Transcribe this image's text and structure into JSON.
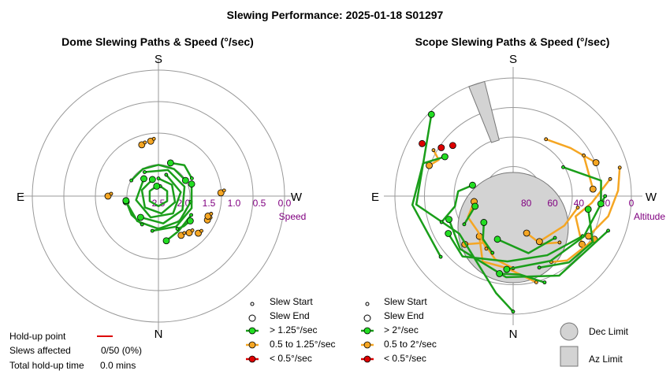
{
  "figure_title": "Slewing Performance: 2025-01-18 S01297",
  "colors": {
    "fast": "#1a9e1a",
    "fast_fill": "#22dd22",
    "medium": "#f5a623",
    "slow": "#dd0000",
    "grid": "#999999",
    "axis_label": "#800080",
    "limit_fill": "#d3d3d3",
    "limit_stroke": "#777777"
  },
  "holdup": {
    "point_label": "Hold-up point",
    "slews_label": "Slews affected",
    "slews_value": "0/50 (0%)",
    "time_label": "Total hold-up time",
    "time_value": "0.0 mins"
  },
  "chart_data": [
    {
      "type": "polar-scatter",
      "title": "Dome Slewing Paths & Speed (°/sec)",
      "compass": {
        "top": "S",
        "bottom": "N",
        "left": "E",
        "right": "W"
      },
      "radial_axis_label": "Speed",
      "radial_ticks": [
        "2.5",
        "2.0",
        "1.5",
        "1.0",
        "0.5",
        "0.0"
      ],
      "radial_tick_values": [
        2.5,
        2.0,
        1.5,
        1.0,
        0.5,
        0.0
      ],
      "radial_range": [
        2.5,
        0.0
      ],
      "legend": {
        "start": "Slew Start",
        "end": "Slew End",
        "fast": "> 1.25°/sec",
        "medium": "0.5 to 1.25°/sec",
        "slow": "< 0.5°/sec"
      },
      "fast_tracks": [
        {
          "az": [
            10,
            60,
            120,
            180,
            240,
            300,
            350
          ],
          "speed": [
            2.3,
            2.3,
            2.3,
            2.3,
            2.3,
            2.3,
            2.3
          ]
        },
        {
          "az": [
            0,
            50,
            110,
            170,
            230,
            290,
            340
          ],
          "speed": [
            2.15,
            2.15,
            2.15,
            2.15,
            2.15,
            2.15,
            2.15
          ]
        },
        {
          "az": [
            20,
            80,
            140,
            200,
            260,
            320
          ],
          "speed": [
            2.05,
            2.05,
            2.05,
            2.05,
            2.05,
            2.05
          ]
        },
        {
          "az": [
            330,
            20,
            70,
            120,
            170,
            220
          ],
          "speed": [
            1.95,
            1.95,
            1.95,
            1.95,
            1.95,
            1.95
          ]
        },
        {
          "az": [
            100,
            140,
            180,
            220,
            260
          ],
          "speed": [
            1.85,
            1.85,
            1.85,
            1.85,
            1.85
          ]
        },
        {
          "az": [
            190,
            150,
            110,
            70
          ],
          "speed": [
            1.8,
            1.8,
            1.8,
            1.8
          ]
        },
        {
          "az": [
            300,
            330,
            0,
            30,
            60
          ],
          "speed": [
            1.88,
            1.88,
            1.88,
            1.88,
            1.88
          ]
        },
        {
          "az": [
            120,
            150,
            170
          ],
          "speed": [
            1.75,
            1.7,
            1.6
          ]
        },
        {
          "az": [
            150,
            140,
            128
          ],
          "speed": [
            1.75,
            1.72,
            1.7
          ]
        },
        {
          "az": [
            210,
            235,
            262
          ],
          "speed": [
            1.85,
            1.85,
            1.85
          ]
        },
        {
          "az": [
            62,
            40,
            20
          ],
          "speed": [
            1.75,
            1.7,
            1.8
          ]
        }
      ],
      "medium_points": [
        {
          "az": 352,
          "speed": 1.4
        },
        {
          "az": 342,
          "speed": 1.43
        },
        {
          "az": 150,
          "speed": 1.6
        },
        {
          "az": 140,
          "speed": 1.55
        },
        {
          "az": 133,
          "speed": 1.42
        },
        {
          "az": 116,
          "speed": 1.42
        },
        {
          "az": 112,
          "speed": 1.44
        },
        {
          "az": 87,
          "speed": 1.26
        },
        {
          "az": 270,
          "speed": 1.5
        }
      ]
    },
    {
      "type": "polar-scatter",
      "title": "Scope Slewing Paths & Speed (°/sec)",
      "compass": {
        "top": "S",
        "bottom": "N",
        "left": "E",
        "right": "W"
      },
      "radial_axis_label": "Altitude",
      "radial_ticks": [
        "80",
        "60",
        "40",
        "20",
        "0"
      ],
      "radial_tick_values": [
        80,
        60,
        40,
        20,
        0
      ],
      "radial_range": [
        90,
        0
      ],
      "legend": {
        "start": "Slew Start",
        "end": "Slew End",
        "fast": "> 2°/sec",
        "medium": "0.5 to 2°/sec",
        "slow": "< 0.5°/sec",
        "dec_limit": "Dec Limit",
        "az_limit": "Az Limit"
      },
      "dec_limit": {
        "az": 0,
        "alt": 66,
        "radius_deg": 20
      },
      "az_limit": {
        "az_from": 338,
        "az_to": 346,
        "alt_from": 46,
        "alt_to": 0
      },
      "fast_paths": [
        {
          "az": [
            180,
            190,
            235,
            265,
            315
          ],
          "alt": [
            2,
            15,
            40,
            16,
            2
          ]
        },
        {
          "az": [
            160,
            140,
            120,
            100
          ],
          "alt": [
            32,
            24,
            20,
            32
          ]
        },
        {
          "az": [
            110,
            150,
            185,
            225,
            250
          ],
          "alt": [
            13,
            20,
            28,
            33,
            38
          ]
        },
        {
          "az": [
            120,
            150,
            185,
            220,
            240
          ],
          "alt": [
            29,
            38,
            40,
            30,
            33
          ]
        },
        {
          "az": [
            135,
            165,
            200
          ],
          "alt": [
            45,
            45,
            55
          ]
        },
        {
          "az": [
            90,
            120,
            150,
            185
          ],
          "alt": [
            20,
            28,
            33,
            34
          ]
        },
        {
          "az": [
            230,
            265,
            290,
            300
          ],
          "alt": [
            18,
            13,
            17,
            30
          ]
        },
        {
          "az": [
            250,
            260,
            275,
            285
          ],
          "alt": [
            32,
            45,
            48,
            58
          ]
        },
        {
          "az": [
            200,
            215,
            228
          ],
          "alt": [
            44,
            50,
            60
          ]
        },
        {
          "az": [
            60,
            80,
            95
          ],
          "alt": [
            46,
            22,
            23
          ]
        },
        {
          "az": [
            160,
            175,
            190
          ],
          "alt": [
            20,
            30,
            30
          ]
        },
        {
          "az": [
            240,
            255
          ],
          "alt": [
            47,
            60
          ]
        }
      ],
      "medium_paths": [
        {
          "az": [
            80,
            95,
            108,
            125
          ],
          "alt": [
            15,
            30,
            40,
            26
          ]
        },
        {
          "az": [
            75,
            87,
            102,
            118
          ],
          "alt": [
            6,
            10,
            16,
            25
          ]
        },
        {
          "az": [
            165,
            185,
            205,
            220
          ],
          "alt": [
            22,
            35,
            35,
            50
          ]
        },
        {
          "az": [
            180,
            196,
            212,
            225
          ],
          "alt": [
            35,
            40,
            48,
            38
          ]
        },
        {
          "az": [
            135,
            150,
            160
          ],
          "alt": [
            40,
            48,
            60
          ]
        },
        {
          "az": [
            300,
            296,
            290
          ],
          "alt": [
            20,
            27,
            22
          ]
        },
        {
          "az": [
            150,
            140,
            118
          ],
          "alt": [
            32,
            26,
            20
          ]
        },
        {
          "az": [
            207,
            225,
            245,
            262
          ],
          "alt": [
            45,
            52,
            52,
            60
          ]
        },
        {
          "az": [
            30,
            50,
            68
          ],
          "alt": [
            40,
            33,
            22
          ]
        },
        {
          "az": [
            100,
            120,
            150
          ],
          "alt": [
            40,
            45,
            50
          ]
        },
        {
          "az": [
            60,
            75,
            85
          ],
          "alt": [
            28,
            30,
            29
          ]
        }
      ],
      "slow_points": [
        {
          "az": 120,
          "alt": 10
        },
        {
          "az": 124,
          "alt": 24
        },
        {
          "az": 130,
          "alt": 30
        }
      ]
    }
  ]
}
